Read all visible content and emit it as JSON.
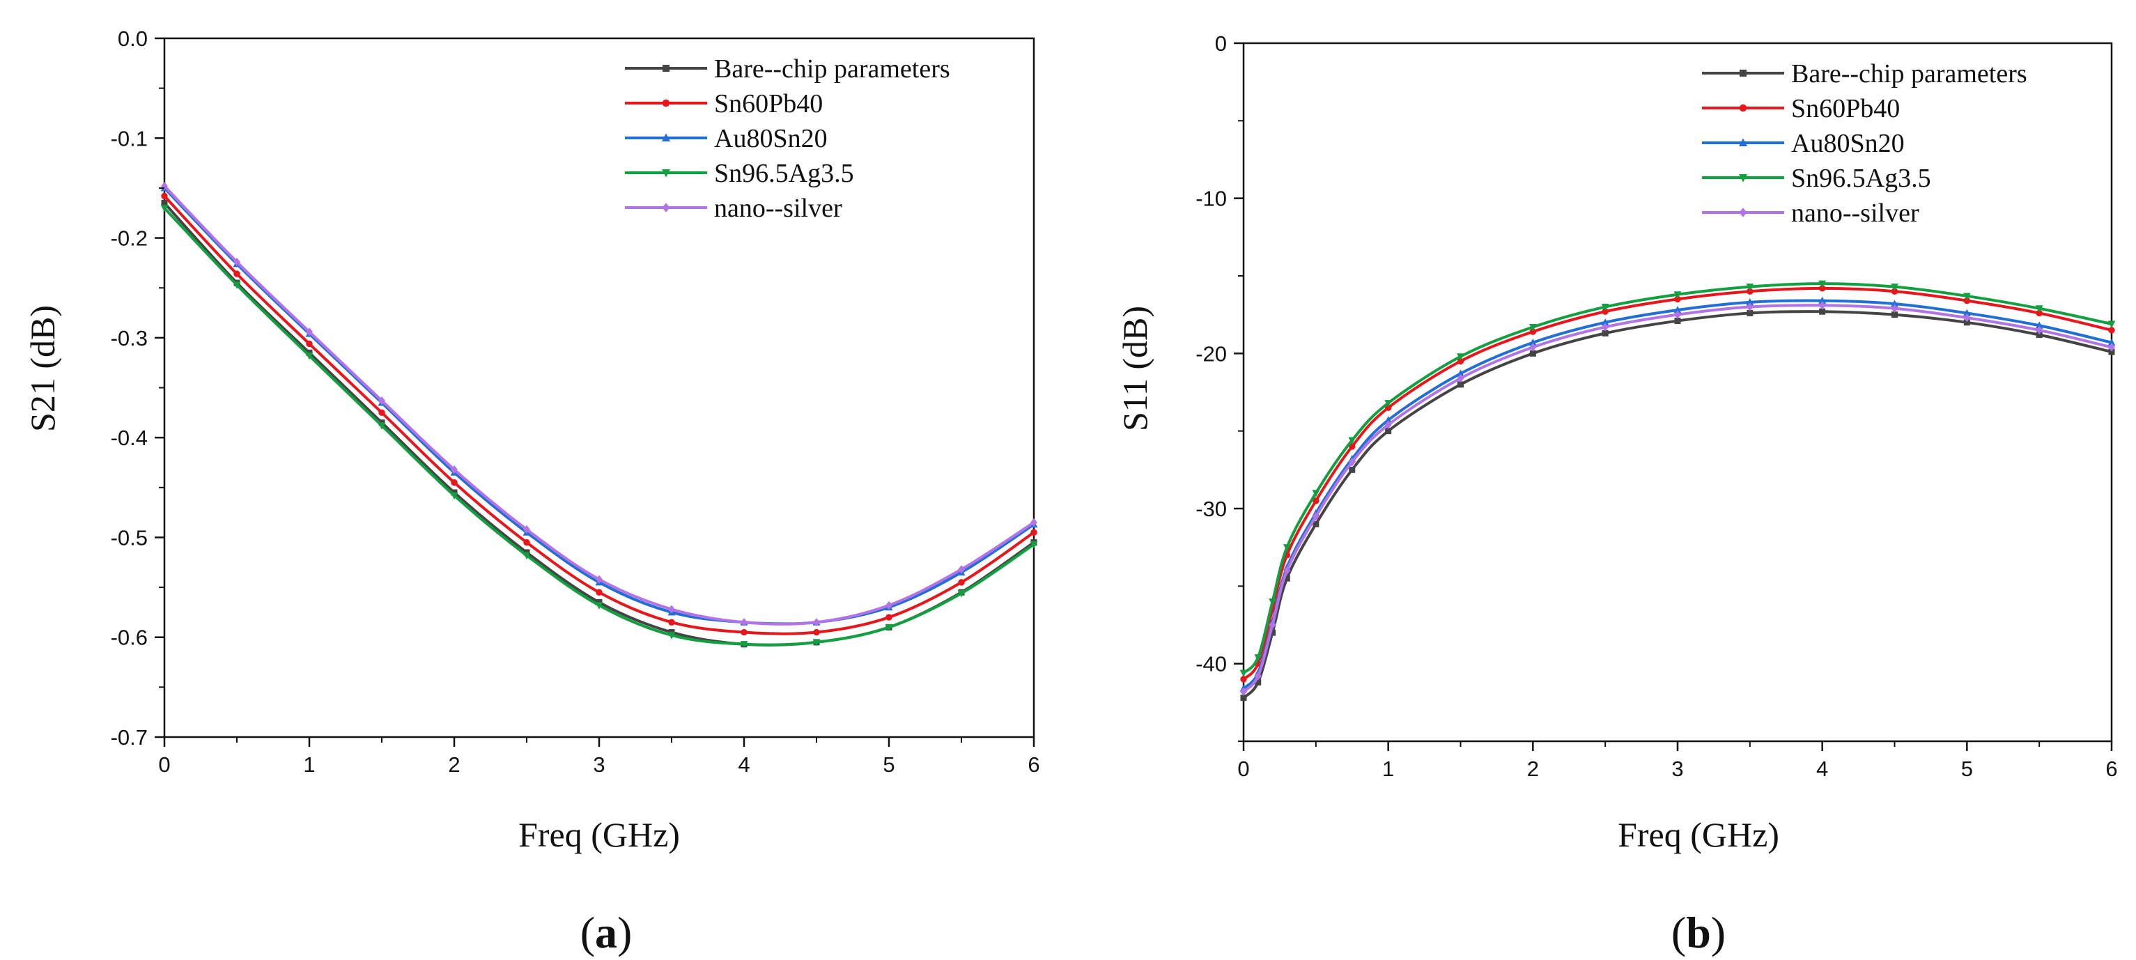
{
  "chart_data": [
    {
      "type": "line",
      "panel_label": "a",
      "xlabel": "Freq (GHz)",
      "ylabel": "S21 (dB)",
      "xlim": [
        0,
        6
      ],
      "ylim": [
        -0.7,
        0.0
      ],
      "xticks": [
        "0",
        "1",
        "2",
        "3",
        "4",
        "5",
        "6"
      ],
      "yticks": [
        "0.0",
        "-0.1",
        "-0.2",
        "-0.3",
        "-0.4",
        "-0.5",
        "-0.6",
        "-0.7"
      ],
      "grid": false,
      "legend_position": "top-right",
      "x": [
        0,
        0.5,
        1,
        1.5,
        2,
        2.5,
        3,
        3.5,
        4,
        4.5,
        5,
        5.5,
        6
      ],
      "series": [
        {
          "name": "Bare--chip parameters",
          "color": "#444444",
          "marker": "square",
          "values": [
            -0.165,
            -0.245,
            -0.315,
            -0.385,
            -0.455,
            -0.515,
            -0.565,
            -0.595,
            -0.607,
            -0.605,
            -0.59,
            -0.555,
            -0.505
          ]
        },
        {
          "name": "Sn60Pb40",
          "color": "#e8161b",
          "marker": "circle",
          "values": [
            -0.158,
            -0.236,
            -0.306,
            -0.375,
            -0.445,
            -0.505,
            -0.555,
            -0.585,
            -0.595,
            -0.595,
            -0.58,
            -0.545,
            -0.495
          ]
        },
        {
          "name": "Au80Sn20",
          "color": "#1f6fd6",
          "marker": "triangle-up",
          "values": [
            -0.15,
            -0.226,
            -0.296,
            -0.365,
            -0.435,
            -0.495,
            -0.545,
            -0.575,
            -0.585,
            -0.585,
            -0.57,
            -0.535,
            -0.487
          ]
        },
        {
          "name": "Sn96.5Ag3.5",
          "color": "#10a040",
          "marker": "triangle-down",
          "values": [
            -0.17,
            -0.247,
            -0.318,
            -0.388,
            -0.458,
            -0.518,
            -0.568,
            -0.598,
            -0.607,
            -0.605,
            -0.59,
            -0.556,
            -0.507
          ]
        },
        {
          "name": "nano--silver",
          "color": "#b273e6",
          "marker": "diamond",
          "values": [
            -0.148,
            -0.224,
            -0.294,
            -0.363,
            -0.432,
            -0.492,
            -0.542,
            -0.572,
            -0.585,
            -0.585,
            -0.568,
            -0.532,
            -0.485
          ]
        }
      ]
    },
    {
      "type": "line",
      "panel_label": "b",
      "xlabel": "Freq (GHz)",
      "ylabel": "S11 (dB)",
      "xlim": [
        0,
        6
      ],
      "ylim": [
        -45,
        0
      ],
      "xticks": [
        "0",
        "1",
        "2",
        "3",
        "4",
        "5",
        "6"
      ],
      "yticks": [
        "0",
        "-10",
        "-20",
        "-30",
        "-40"
      ],
      "grid": false,
      "legend_position": "top-right",
      "x": [
        0,
        0.1,
        0.2,
        0.3,
        0.5,
        0.75,
        1,
        1.5,
        2,
        2.5,
        3,
        3.5,
        4,
        4.5,
        5,
        5.5,
        6
      ],
      "series": [
        {
          "name": "Bare--chip parameters",
          "color": "#444444",
          "marker": "square",
          "values": [
            -42.2,
            -41.2,
            -38.0,
            -34.5,
            -31.0,
            -27.5,
            -25.0,
            -22.0,
            -20.0,
            -18.7,
            -17.9,
            -17.4,
            -17.3,
            -17.5,
            -18.0,
            -18.8,
            -19.9
          ]
        },
        {
          "name": "Sn60Pb40",
          "color": "#e8161b",
          "marker": "circle",
          "values": [
            -41.0,
            -40.0,
            -36.5,
            -33.0,
            -29.5,
            -26.0,
            -23.5,
            -20.5,
            -18.6,
            -17.3,
            -16.5,
            -16.0,
            -15.8,
            -16.0,
            -16.6,
            -17.4,
            -18.5
          ]
        },
        {
          "name": "Au80Sn20",
          "color": "#1f6fd6",
          "marker": "triangle-up",
          "values": [
            -41.6,
            -40.6,
            -37.3,
            -33.8,
            -30.3,
            -26.8,
            -24.3,
            -21.3,
            -19.3,
            -18.0,
            -17.2,
            -16.7,
            -16.6,
            -16.8,
            -17.4,
            -18.2,
            -19.3
          ]
        },
        {
          "name": "Sn96.5Ag3.5",
          "color": "#10a040",
          "marker": "triangle-down",
          "values": [
            -40.6,
            -39.6,
            -36.0,
            -32.5,
            -29.0,
            -25.6,
            -23.2,
            -20.2,
            -18.3,
            -17.0,
            -16.2,
            -15.7,
            -15.5,
            -15.7,
            -16.3,
            -17.1,
            -18.1
          ]
        },
        {
          "name": "nano--silver",
          "color": "#b273e6",
          "marker": "diamond",
          "values": [
            -41.8,
            -40.8,
            -37.5,
            -34.0,
            -30.5,
            -27.0,
            -24.6,
            -21.6,
            -19.6,
            -18.3,
            -17.5,
            -17.0,
            -16.9,
            -17.1,
            -17.7,
            -18.5,
            -19.6
          ]
        }
      ]
    }
  ]
}
